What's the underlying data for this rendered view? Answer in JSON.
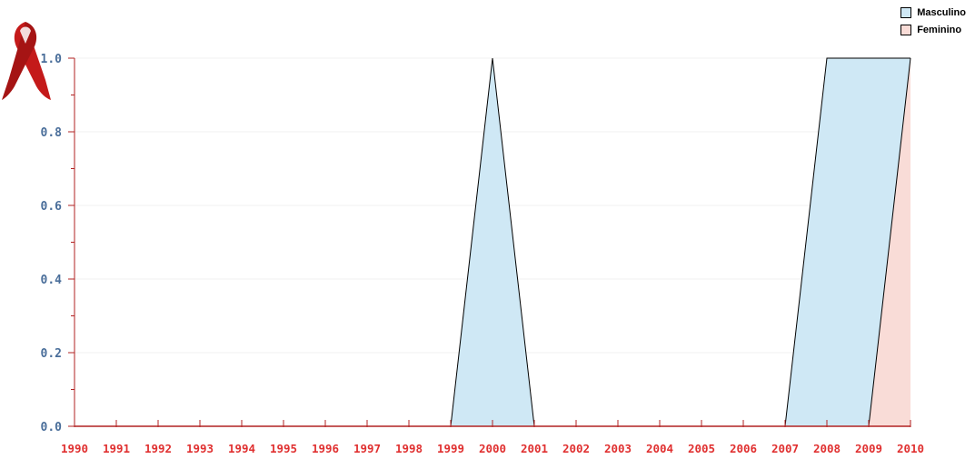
{
  "colors": {
    "masculino_fill": "#cfe8f5",
    "feminino_fill": "#f9dcd7",
    "axis": "#b22222",
    "ytick_text": "#4a6e9a",
    "xtick_text": "#e03030",
    "ribbon": "#c41a1a"
  },
  "icons": {
    "logo": "red-ribbon-icon"
  },
  "chart_data": {
    "type": "area",
    "x": [
      "1990",
      "1991",
      "1992",
      "1993",
      "1994",
      "1995",
      "1996",
      "1997",
      "1998",
      "1999",
      "2000",
      "2001",
      "2002",
      "2003",
      "2004",
      "2005",
      "2006",
      "2007",
      "2008",
      "2009",
      "2010"
    ],
    "ylim": [
      0,
      1.0
    ],
    "yticks": [
      "0.0",
      "0.2",
      "0.4",
      "0.6",
      "0.8",
      "1.0"
    ],
    "grid": true,
    "legend_position": "top-right",
    "series": [
      {
        "name": "Masculino",
        "values": [
          0,
          0,
          0,
          0,
          0,
          0,
          0,
          0,
          0,
          0,
          1,
          0,
          0,
          0,
          0,
          0,
          0,
          0,
          1,
          1,
          1
        ]
      },
      {
        "name": "Feminino",
        "values": [
          0,
          0,
          0,
          0,
          0,
          0,
          0,
          0,
          0,
          0,
          0,
          0,
          0,
          0,
          0,
          0,
          0,
          0,
          0,
          0,
          1
        ]
      }
    ]
  }
}
